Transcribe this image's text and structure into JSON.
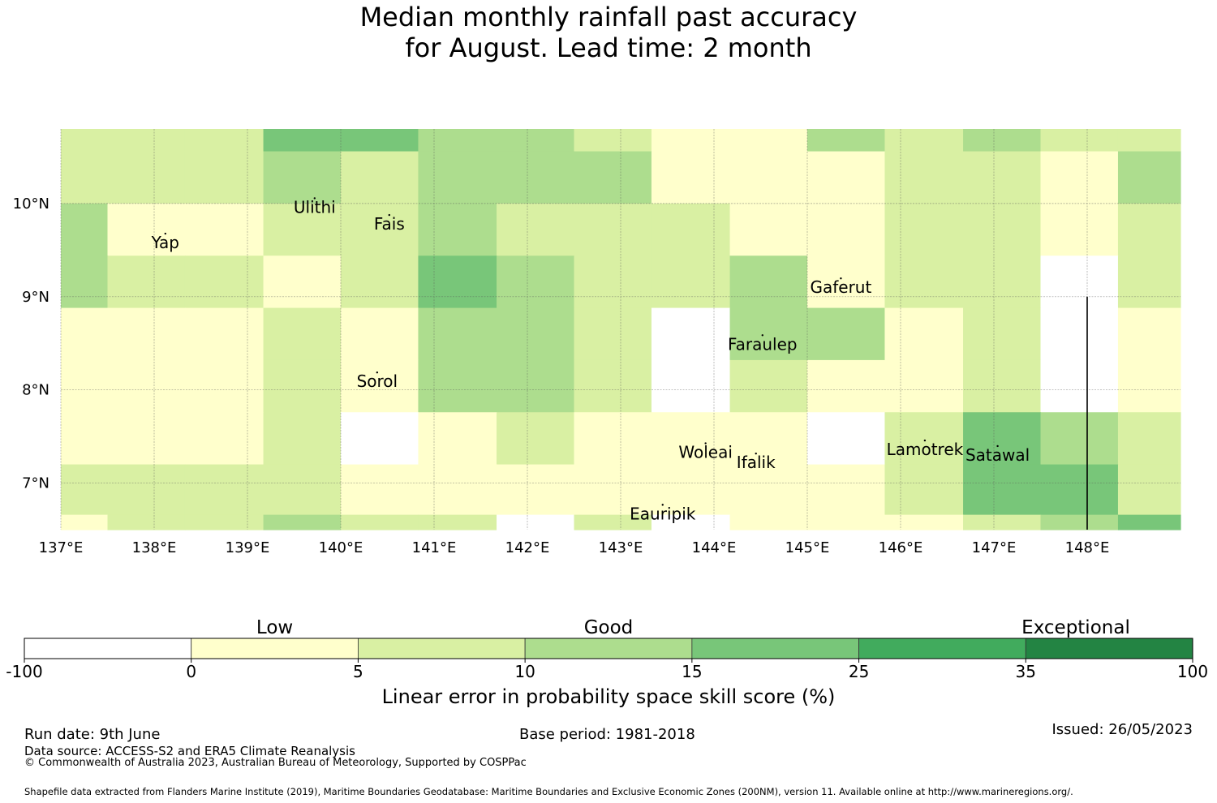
{
  "title": {
    "line1": "Median monthly rainfall past accuracy",
    "line2": "for August. Lead time: 2 month"
  },
  "map": {
    "lon_range": [
      137,
      149
    ],
    "lat_range": [
      6.5,
      10.8
    ],
    "lon_ticks": [
      {
        "value": 137,
        "label": "137°E"
      },
      {
        "value": 138,
        "label": "138°E"
      },
      {
        "value": 139,
        "label": "139°E"
      },
      {
        "value": 140,
        "label": "140°E"
      },
      {
        "value": 141,
        "label": "141°E"
      },
      {
        "value": 142,
        "label": "142°E"
      },
      {
        "value": 143,
        "label": "143°E"
      },
      {
        "value": 144,
        "label": "144°E"
      },
      {
        "value": 145,
        "label": "145°E"
      },
      {
        "value": 146,
        "label": "146°E"
      },
      {
        "value": 147,
        "label": "147°E"
      },
      {
        "value": 148,
        "label": "148°E"
      }
    ],
    "lat_ticks": [
      {
        "value": 10,
        "label": "10°N"
      },
      {
        "value": 9,
        "label": "9°N"
      },
      {
        "value": 8,
        "label": "8°N"
      },
      {
        "value": 7,
        "label": "7°N"
      }
    ],
    "grid": true,
    "cell_lon_edges": [
      137,
      137.5,
      138.33,
      139.17,
      140,
      140.83,
      141.67,
      142.5,
      143.33,
      144.17,
      145,
      145.83,
      146.67,
      147.5,
      148.33,
      149
    ],
    "cell_lat_edges": [
      10.8,
      10.56,
      10.0,
      9.44,
      8.88,
      8.32,
      7.76,
      7.2,
      6.66,
      6.5
    ],
    "cell_class_rows": [
      [
        2,
        2,
        2,
        4,
        4,
        3,
        3,
        2,
        1,
        1,
        3,
        2,
        3,
        2,
        2
      ],
      [
        2,
        2,
        2,
        3,
        2,
        3,
        3,
        3,
        1,
        1,
        1,
        2,
        2,
        1,
        3
      ],
      [
        3,
        1,
        1,
        2,
        2,
        3,
        2,
        2,
        2,
        1,
        1,
        2,
        2,
        1,
        2
      ],
      [
        3,
        2,
        2,
        1,
        2,
        4,
        3,
        2,
        2,
        3,
        1,
        2,
        2,
        0,
        2
      ],
      [
        1,
        1,
        1,
        2,
        1,
        3,
        3,
        2,
        0,
        3,
        3,
        1,
        2,
        0,
        1
      ],
      [
        1,
        1,
        1,
        2,
        1,
        3,
        3,
        2,
        0,
        2,
        1,
        1,
        2,
        0,
        1
      ],
      [
        1,
        1,
        1,
        2,
        0,
        1,
        2,
        1,
        1,
        1,
        0,
        2,
        4,
        3,
        2
      ],
      [
        2,
        2,
        2,
        2,
        1,
        1,
        1,
        1,
        1,
        1,
        1,
        2,
        4,
        4,
        2
      ],
      [
        1,
        2,
        2,
        3,
        2,
        2,
        0,
        2,
        0,
        1,
        1,
        1,
        2,
        3,
        4
      ]
    ],
    "border_line": {
      "lon": 148,
      "lat_from": 6.5,
      "lat_to": 9.0
    },
    "places": [
      {
        "name": "Ulithi",
        "lon": 139.72,
        "lat": 9.9
      },
      {
        "name": "Yap",
        "lon": 138.12,
        "lat": 9.52
      },
      {
        "name": "Fais",
        "lon": 140.52,
        "lat": 9.72
      },
      {
        "name": "Gaferut",
        "lon": 145.36,
        "lat": 9.04
      },
      {
        "name": "Faraulep",
        "lon": 144.52,
        "lat": 8.43
      },
      {
        "name": "Sorol",
        "lon": 140.39,
        "lat": 8.03
      },
      {
        "name": "Woleai",
        "lon": 143.91,
        "lat": 7.27
      },
      {
        "name": "Ifalik",
        "lon": 144.45,
        "lat": 7.16
      },
      {
        "name": "Lamotrek",
        "lon": 146.26,
        "lat": 7.3
      },
      {
        "name": "Satawal",
        "lon": 147.04,
        "lat": 7.24
      },
      {
        "name": "Eauripik",
        "lon": 143.45,
        "lat": 6.61
      }
    ]
  },
  "legend": {
    "category_labels": [
      "Low",
      "Good",
      "Exceptional"
    ],
    "bounds": [
      "-100",
      "0",
      "5",
      "10",
      "15",
      "25",
      "35",
      "100"
    ],
    "colors": [
      "#ffffff",
      "#ffffcc",
      "#d9f0a3",
      "#addd8e",
      "#78c679",
      "#41ab5d",
      "#238443"
    ],
    "axis_label": "Linear error in probability space skill score (%)"
  },
  "footer": {
    "run_date": "Run date: 9th June",
    "base_period": "Base period: 1981-2018",
    "issued": "Issued: 26/05/2023",
    "data_source": "Data source: ACCESS-S2 and ERA5 Climate Reanalysis",
    "copyright": "© Commonwealth of Australia 2023, Australian Bureau of Meteorology, Supported by COSPPac",
    "shapefile_note": "Shapefile data extracted from Flanders Marine Institute (2019), Maritime Boundaries Geodatabase: Maritime Boundaries and Exclusive Economic Zones (200NM), version 11. Available online at http://www.marineregions.org/."
  }
}
